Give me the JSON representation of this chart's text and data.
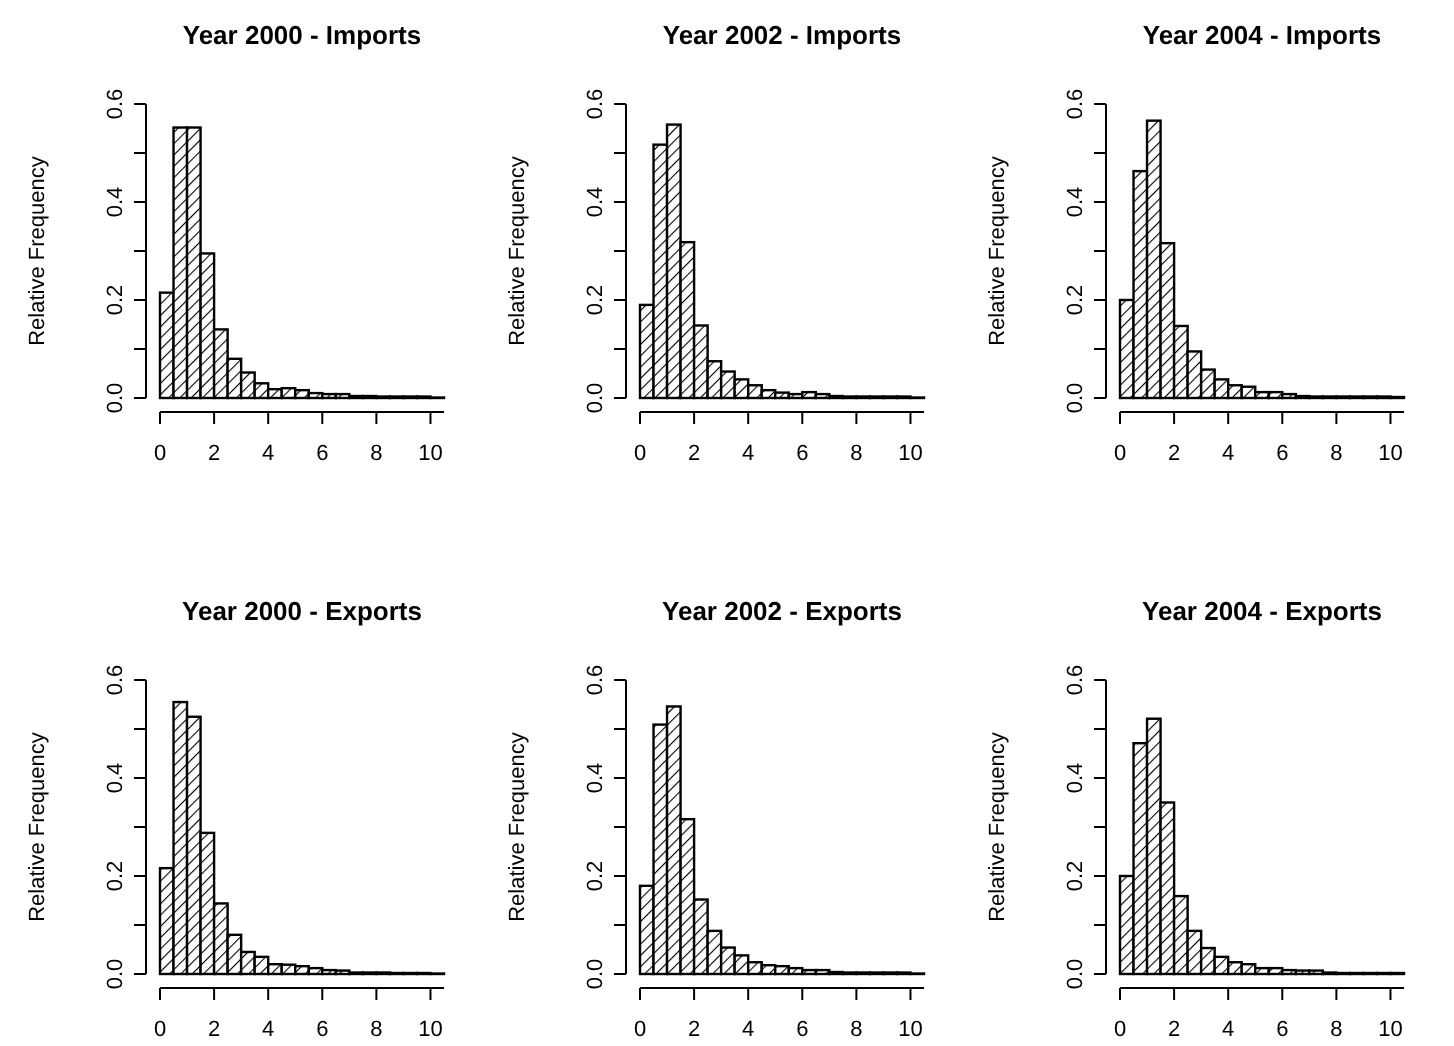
{
  "chart_data": [
    {
      "type": "histogram",
      "title": "Year 2000 - Imports",
      "ylabel": "Relative Frequency",
      "color": "#000000",
      "bins": [
        0,
        0.5,
        1,
        1.5,
        2,
        2.5,
        3,
        3.5,
        4,
        4.5,
        5,
        5.5,
        6,
        6.5,
        7,
        7.5,
        8,
        8.5,
        9,
        9.5,
        10,
        10.5
      ],
      "values": [
        0.215,
        0.552,
        0.552,
        0.295,
        0.14,
        0.08,
        0.052,
        0.03,
        0.018,
        0.02,
        0.016,
        0.01,
        0.008,
        0.008,
        0.004,
        0.004,
        0.003,
        0.003,
        0.003,
        0.003,
        0.001
      ],
      "xlim": [
        0,
        10.5
      ],
      "xticks": [
        0,
        2,
        4,
        6,
        8,
        10
      ],
      "ylim": [
        0,
        0.6
      ],
      "yticks": [
        {
          "value": 0,
          "label": "0.0"
        },
        {
          "value": 0.1,
          "label": null
        },
        0.2,
        {
          "value": 0.3,
          "label": null
        },
        0.4,
        {
          "value": 0.5,
          "label": null
        },
        0.6
      ]
    },
    {
      "type": "histogram",
      "title": "Year 2002 - Imports",
      "ylabel": "Relative Frequency",
      "color": "#000000",
      "bins": [
        0,
        0.5,
        1,
        1.5,
        2,
        2.5,
        3,
        3.5,
        4,
        4.5,
        5,
        5.5,
        6,
        6.5,
        7,
        7.5,
        8,
        8.5,
        9,
        9.5,
        10,
        10.5
      ],
      "values": [
        0.19,
        0.517,
        0.558,
        0.318,
        0.148,
        0.075,
        0.054,
        0.038,
        0.026,
        0.016,
        0.011,
        0.008,
        0.012,
        0.008,
        0.004,
        0.003,
        0.003,
        0.003,
        0.003,
        0.003,
        0.001
      ],
      "xlim": [
        0,
        10.5
      ],
      "xticks": [
        0,
        2,
        4,
        6,
        8,
        10
      ],
      "ylim": [
        0,
        0.6
      ],
      "yticks": [
        {
          "value": 0,
          "label": "0.0"
        },
        {
          "value": 0.1,
          "label": null
        },
        0.2,
        {
          "value": 0.3,
          "label": null
        },
        0.4,
        {
          "value": 0.5,
          "label": null
        },
        0.6
      ]
    },
    {
      "type": "histogram",
      "title": "Year 2004 - Imports",
      "ylabel": "Relative Frequency",
      "color": "#000000",
      "bins": [
        0,
        0.5,
        1,
        1.5,
        2,
        2.5,
        3,
        3.5,
        4,
        4.5,
        5,
        5.5,
        6,
        6.5,
        7,
        7.5,
        8,
        8.5,
        9,
        9.5,
        10,
        10.5
      ],
      "values": [
        0.2,
        0.463,
        0.566,
        0.316,
        0.147,
        0.095,
        0.058,
        0.038,
        0.026,
        0.023,
        0.012,
        0.012,
        0.008,
        0.004,
        0.003,
        0.003,
        0.003,
        0.003,
        0.003,
        0.003,
        0.002
      ],
      "xlim": [
        0,
        10.5
      ],
      "xticks": [
        0,
        2,
        4,
        6,
        8,
        10
      ],
      "ylim": [
        0,
        0.6
      ],
      "yticks": [
        {
          "value": 0,
          "label": "0.0"
        },
        {
          "value": 0.1,
          "label": null
        },
        0.2,
        {
          "value": 0.3,
          "label": null
        },
        0.4,
        {
          "value": 0.5,
          "label": null
        },
        0.6
      ]
    },
    {
      "type": "histogram",
      "title": "Year 2000 - Exports",
      "ylabel": "Relative Frequency",
      "color": "#000000",
      "bins": [
        0,
        0.5,
        1,
        1.5,
        2,
        2.5,
        3,
        3.5,
        4,
        4.5,
        5,
        5.5,
        6,
        6.5,
        7,
        7.5,
        8,
        8.5,
        9,
        9.5,
        10,
        10.5
      ],
      "values": [
        0.216,
        0.555,
        0.525,
        0.288,
        0.144,
        0.08,
        0.045,
        0.035,
        0.02,
        0.019,
        0.016,
        0.012,
        0.008,
        0.007,
        0.003,
        0.003,
        0.003,
        0.002,
        0.002,
        0.002,
        0.001
      ],
      "xlim": [
        0,
        10.5
      ],
      "xticks": [
        0,
        2,
        4,
        6,
        8,
        10
      ],
      "ylim": [
        0,
        0.6
      ],
      "yticks": [
        {
          "value": 0,
          "label": "0.0"
        },
        {
          "value": 0.1,
          "label": null
        },
        0.2,
        {
          "value": 0.3,
          "label": null
        },
        0.4,
        {
          "value": 0.5,
          "label": null
        },
        0.6
      ]
    },
    {
      "type": "histogram",
      "title": "Year 2002 - Exports",
      "ylabel": "Relative Frequency",
      "color": "#000000",
      "bins": [
        0,
        0.5,
        1,
        1.5,
        2,
        2.5,
        3,
        3.5,
        4,
        4.5,
        5,
        5.5,
        6,
        6.5,
        7,
        7.5,
        8,
        8.5,
        9,
        9.5,
        10,
        10.5
      ],
      "values": [
        0.18,
        0.509,
        0.546,
        0.316,
        0.152,
        0.088,
        0.054,
        0.038,
        0.024,
        0.018,
        0.016,
        0.012,
        0.008,
        0.008,
        0.004,
        0.003,
        0.003,
        0.003,
        0.003,
        0.003,
        0.001
      ],
      "xlim": [
        0,
        10.5
      ],
      "xticks": [
        0,
        2,
        4,
        6,
        8,
        10
      ],
      "ylim": [
        0,
        0.6
      ],
      "yticks": [
        {
          "value": 0,
          "label": "0.0"
        },
        {
          "value": 0.1,
          "label": null
        },
        0.2,
        {
          "value": 0.3,
          "label": null
        },
        0.4,
        {
          "value": 0.5,
          "label": null
        },
        0.6
      ]
    },
    {
      "type": "histogram",
      "title": "Year 2004 - Exports",
      "ylabel": "Relative Frequency",
      "color": "#000000",
      "bins": [
        0,
        0.5,
        1,
        1.5,
        2,
        2.5,
        3,
        3.5,
        4,
        4.5,
        5,
        5.5,
        6,
        6.5,
        7,
        7.5,
        8,
        8.5,
        9,
        9.5,
        10,
        10.5
      ],
      "values": [
        0.2,
        0.471,
        0.521,
        0.35,
        0.159,
        0.088,
        0.053,
        0.035,
        0.024,
        0.02,
        0.012,
        0.012,
        0.008,
        0.007,
        0.007,
        0.003,
        0.002,
        0.002,
        0.002,
        0.002,
        0.002
      ],
      "xlim": [
        0,
        10.5
      ],
      "xticks": [
        0,
        2,
        4,
        6,
        8,
        10
      ],
      "ylim": [
        0,
        0.6
      ],
      "yticks": [
        {
          "value": 0,
          "label": "0.0"
        },
        {
          "value": 0.1,
          "label": null
        },
        0.2,
        {
          "value": 0.3,
          "label": null
        },
        0.4,
        {
          "value": 0.5,
          "label": null
        },
        0.6
      ]
    }
  ]
}
